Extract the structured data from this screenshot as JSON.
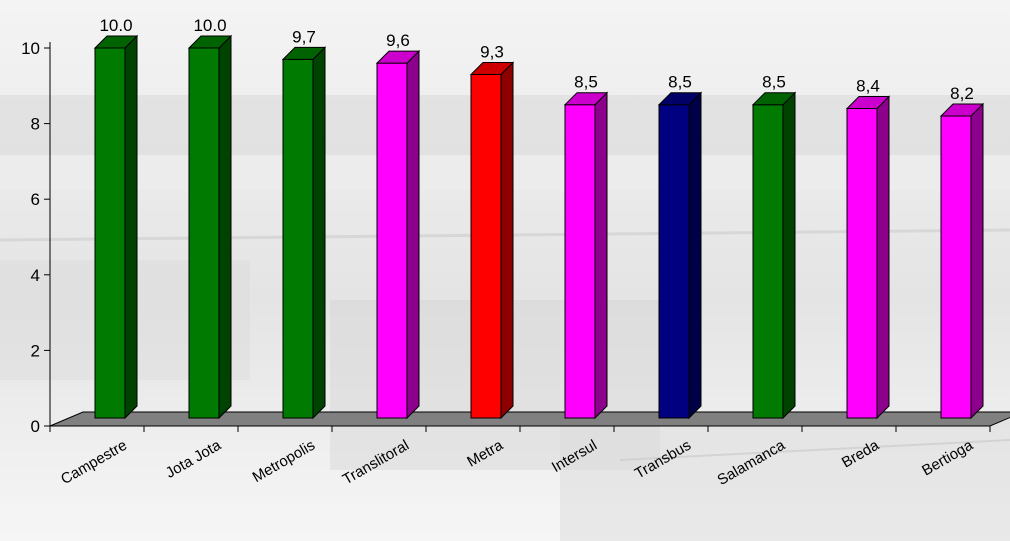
{
  "chart_data": {
    "type": "bar",
    "categories": [
      "Campestre",
      "Jota Jota",
      "Metropolis",
      "Translitoral",
      "Metra",
      "Intersul",
      "Transbus",
      "Salamanca",
      "Breda",
      "Bertioga"
    ],
    "values": [
      10.0,
      10.0,
      9.7,
      9.6,
      9.3,
      8.5,
      8.5,
      8.5,
      8.4,
      8.2
    ],
    "data_labels": [
      "10.0",
      "10.0",
      "9,7",
      "9,6",
      "9,3",
      "8,5",
      "8,5",
      "8,5",
      "8,4",
      "8,2"
    ],
    "bar_colors": [
      "#007a00",
      "#007a00",
      "#007a00",
      "#ff00ff",
      "#ff0000",
      "#ff00ff",
      "#000080",
      "#007a00",
      "#ff00ff",
      "#ff00ff"
    ],
    "y_ticks": [
      "0",
      "2",
      "4",
      "6",
      "8",
      "10"
    ],
    "ylim": [
      0,
      10
    ],
    "title": "",
    "xlabel": "",
    "ylabel": "",
    "grid": false,
    "style": "3d-bars",
    "floor_color": "#808080",
    "background": "faded black-and-white bus depot photograph"
  }
}
